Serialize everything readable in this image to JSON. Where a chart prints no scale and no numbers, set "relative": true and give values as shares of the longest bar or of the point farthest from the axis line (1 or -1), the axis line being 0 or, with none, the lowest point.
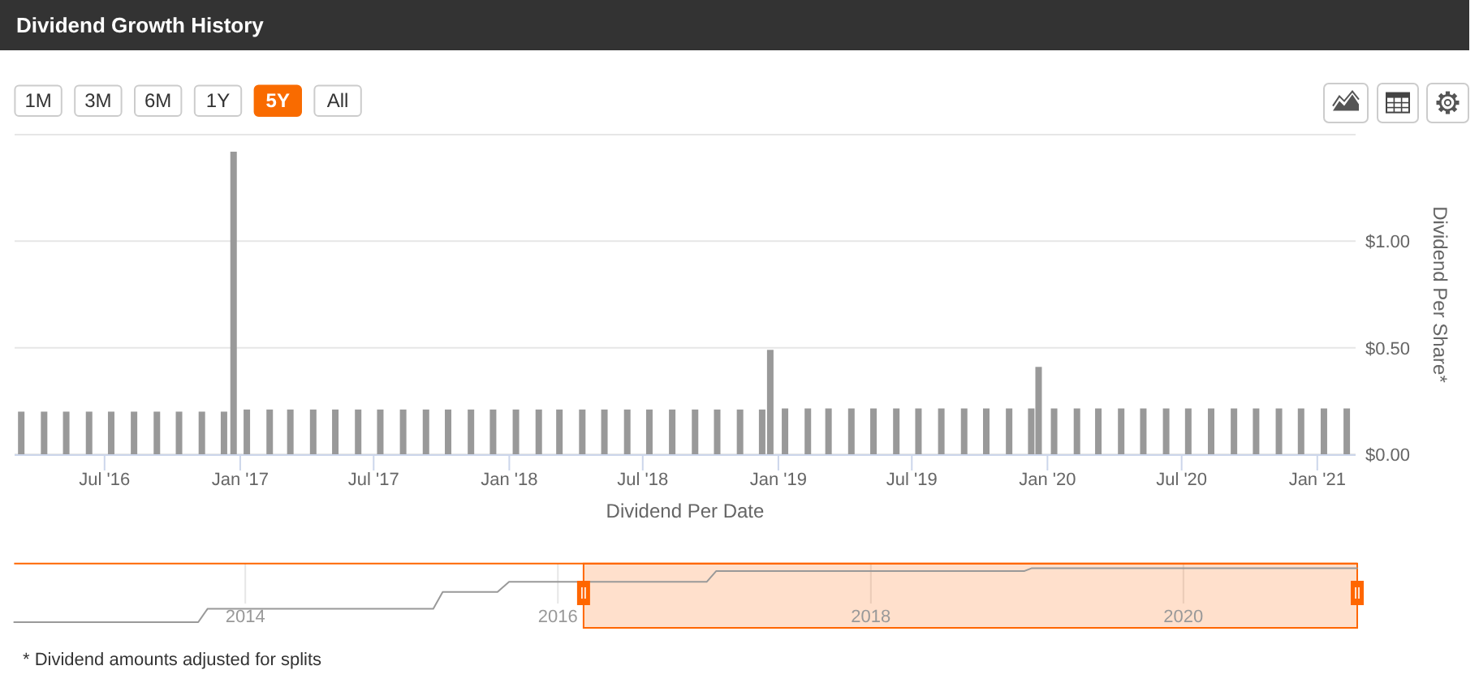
{
  "chart_data": [
    {
      "type": "bar",
      "title": "Dividend Growth History",
      "xlabel": "Dividend Per Date",
      "ylabel": "Dividend Per Share*",
      "x": [
        "2016-03-10",
        "2016-04-10",
        "2016-05-10",
        "2016-06-10",
        "2016-07-10",
        "2016-08-10",
        "2016-09-10",
        "2016-10-10",
        "2016-11-10",
        "2016-12-10",
        "2016-12-23",
        "2017-01-10",
        "2017-02-10",
        "2017-03-10",
        "2017-04-10",
        "2017-05-10",
        "2017-06-10",
        "2017-07-10",
        "2017-08-10",
        "2017-09-10",
        "2017-10-10",
        "2017-11-10",
        "2017-12-10",
        "2018-01-10",
        "2018-02-10",
        "2018-03-10",
        "2018-04-10",
        "2018-05-10",
        "2018-06-10",
        "2018-07-10",
        "2018-08-10",
        "2018-09-10",
        "2018-10-10",
        "2018-11-10",
        "2018-12-10",
        "2018-12-21",
        "2019-01-10",
        "2019-02-10",
        "2019-03-10",
        "2019-04-10",
        "2019-05-10",
        "2019-06-10",
        "2019-07-10",
        "2019-08-10",
        "2019-09-10",
        "2019-10-10",
        "2019-11-10",
        "2019-12-10",
        "2019-12-20",
        "2020-01-10",
        "2020-02-10",
        "2020-03-10",
        "2020-04-10",
        "2020-05-10",
        "2020-06-10",
        "2020-07-10",
        "2020-08-10",
        "2020-09-10",
        "2020-10-10",
        "2020-11-10",
        "2020-12-10",
        "2021-01-10",
        "2021-02-10"
      ],
      "values": [
        0.2,
        0.2,
        0.2,
        0.2,
        0.2,
        0.2,
        0.2,
        0.2,
        0.2,
        0.2,
        1.42,
        0.21,
        0.21,
        0.21,
        0.21,
        0.21,
        0.21,
        0.21,
        0.21,
        0.21,
        0.21,
        0.21,
        0.21,
        0.21,
        0.21,
        0.21,
        0.21,
        0.21,
        0.21,
        0.21,
        0.21,
        0.21,
        0.21,
        0.21,
        0.21,
        0.49,
        0.215,
        0.215,
        0.215,
        0.215,
        0.215,
        0.215,
        0.215,
        0.215,
        0.215,
        0.215,
        0.215,
        0.215,
        0.41,
        0.215,
        0.215,
        0.215,
        0.215,
        0.215,
        0.215,
        0.215,
        0.215,
        0.215,
        0.215,
        0.215,
        0.215,
        0.215,
        0.215
      ],
      "color": "#999999",
      "xlim": [
        "2016-03-01",
        "2021-02-22"
      ],
      "xticks": [
        {
          "value": "2016-07-01",
          "label": "Jul '16"
        },
        {
          "value": "2017-01-01",
          "label": "Jan '17"
        },
        {
          "value": "2017-07-01",
          "label": "Jul '17"
        },
        {
          "value": "2018-01-01",
          "label": "Jan '18"
        },
        {
          "value": "2018-07-01",
          "label": "Jul '18"
        },
        {
          "value": "2019-01-01",
          "label": "Jan '19"
        },
        {
          "value": "2019-07-01",
          "label": "Jul '19"
        },
        {
          "value": "2020-01-01",
          "label": "Jan '20"
        },
        {
          "value": "2020-07-01",
          "label": "Jul '20"
        },
        {
          "value": "2021-01-01",
          "label": "Jan '21"
        }
      ],
      "ylim": [
        0,
        1.5
      ],
      "yticks": [
        {
          "value": 0,
          "label": "$0.00"
        },
        {
          "value": 0.5,
          "label": "$0.50"
        },
        {
          "value": 1,
          "label": "$1.00"
        },
        {
          "value": 1.5,
          "label": null
        }
      ],
      "grid": "y",
      "annotations": [
        "1M",
        "3M",
        "6M",
        "1Y",
        "5Y",
        "All",
        "* Dividend amounts adjusted for splits"
      ]
    },
    {
      "type": "line",
      "relative": true,
      "x": [
        "2012-07-10",
        "2013-09-13",
        "2013-10-05",
        "2015-03-16",
        "2015-04-07",
        "2015-08-13",
        "2015-09-09",
        "2016-12-14",
        "2017-01-05",
        "2018-12-26",
        "2019-01-11",
        "2021-02-10"
      ],
      "values": [
        0,
        0,
        0.25,
        0.25,
        0.56,
        0.56,
        0.75,
        0.75,
        0.95,
        0.95,
        1,
        1
      ],
      "color": "#999999",
      "xlim": [
        "2012-07-10",
        "2021-02-10"
      ],
      "xticks": [
        {
          "value": "2014-01-01",
          "label": "2014"
        },
        {
          "value": "2016-01-01",
          "label": "2016"
        },
        {
          "value": "2018-01-01",
          "label": "2018"
        },
        {
          "value": "2020-01-01",
          "label": "2020"
        }
      ],
      "grid": "x",
      "bands": [
        {
          "axis": "x",
          "from": "2016-03-01",
          "to": "2021-02-10",
          "color": "#ff6600"
        }
      ]
    }
  ]
}
